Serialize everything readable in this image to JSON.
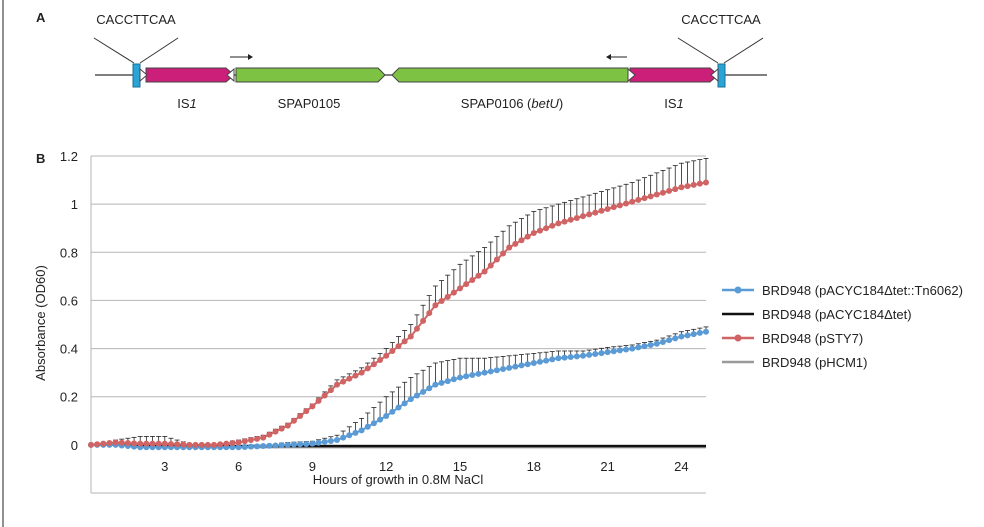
{
  "panel_a": {
    "label": "A",
    "left_site": "CACCTTCAA",
    "right_site": "CACCTTCAA",
    "elements": [
      {
        "name": "IS",
        "italic": "1"
      },
      {
        "name": "SPAP0105",
        "italic": ""
      },
      {
        "name": "SPAP0106 (",
        "italic": "betU",
        "suffix": ")"
      },
      {
        "name": "IS",
        "italic": "1"
      }
    ],
    "colors": {
      "is1": "#cc1f7a",
      "gene": "#7dc242",
      "dr": "#2aa4d6"
    }
  },
  "panel_b": {
    "label": "B"
  },
  "chart_data": {
    "type": "line",
    "title": "",
    "xlabel": "Hours of growth in 0.8M NaCl",
    "ylabel": "Absorbance (OD60)",
    "xlim": [
      0,
      25
    ],
    "ylim": [
      -0.2,
      1.2
    ],
    "xticks": [
      "3",
      "6",
      "9",
      "12",
      "15",
      "18",
      "21",
      "24"
    ],
    "yticks": [
      "0",
      "0.2",
      "0.4",
      "0.6",
      "0.8",
      "1",
      "1.2"
    ],
    "grid": true,
    "legend_position": "right",
    "x": [
      0,
      1,
      2,
      3,
      4,
      5,
      6,
      7,
      8,
      9,
      10,
      11,
      12,
      13,
      14,
      15,
      16,
      17,
      18,
      19,
      20,
      21,
      22,
      23,
      24,
      25
    ],
    "series": [
      {
        "name": "BRD948 (pACYC184Δtet::Tn6062)",
        "color": "#5b9bd5",
        "values": [
          0,
          0,
          -0.01,
          -0.01,
          -0.01,
          -0.01,
          -0.01,
          -0.005,
          0,
          0.005,
          0.02,
          0.06,
          0.12,
          0.19,
          0.25,
          0.28,
          0.3,
          0.32,
          0.34,
          0.36,
          0.37,
          0.385,
          0.4,
          0.42,
          0.45,
          0.47
        ],
        "error": [
          0,
          0.005,
          0.02,
          0.015,
          0.005,
          0.005,
          0.005,
          0.005,
          0.01,
          0.01,
          0.02,
          0.05,
          0.08,
          0.09,
          0.09,
          0.08,
          0.06,
          0.05,
          0.04,
          0.03,
          0.02,
          0.02,
          0.015,
          0.015,
          0.02,
          0.02
        ]
      },
      {
        "name": "BRD948 (pACYC184Δtet)",
        "color": "#111111",
        "values": [
          0,
          0,
          -0.005,
          -0.005,
          -0.005,
          -0.005,
          -0.005,
          -0.005,
          -0.005,
          -0.005,
          -0.005,
          -0.005,
          -0.005,
          -0.005,
          -0.005,
          -0.005,
          -0.005,
          -0.005,
          -0.005,
          -0.005,
          -0.005,
          -0.005,
          -0.005,
          -0.005,
          -0.005,
          -0.005
        ],
        "error": [
          0,
          0,
          0.005,
          0.005,
          0.005,
          0.005,
          0.005,
          0.005,
          0.005,
          0.005,
          0.005,
          0.005,
          0.005,
          0.005,
          0.005,
          0.005,
          0.005,
          0.005,
          0.005,
          0.005,
          0.005,
          0.005,
          0.005,
          0.005,
          0.005,
          0.005
        ]
      },
      {
        "name": "BRD948 (pSTY7)",
        "color": "#d06464",
        "values": [
          0,
          0.01,
          0.005,
          0.005,
          0,
          0,
          0.01,
          0.03,
          0.08,
          0.16,
          0.25,
          0.3,
          0.37,
          0.45,
          0.58,
          0.65,
          0.72,
          0.82,
          0.88,
          0.92,
          0.95,
          0.98,
          1.01,
          1.04,
          1.07,
          1.09
        ],
        "error": [
          0,
          0.01,
          0.03,
          0.03,
          0.005,
          0.005,
          0.01,
          0.01,
          0.01,
          0.01,
          0.02,
          0.02,
          0.03,
          0.05,
          0.08,
          0.1,
          0.1,
          0.09,
          0.09,
          0.08,
          0.08,
          0.08,
          0.08,
          0.09,
          0.1,
          0.1
        ]
      },
      {
        "name": "BRD948 (pHCM1)",
        "color": "#9a9a9a",
        "values": [
          0,
          0,
          -0.005,
          -0.01,
          -0.01,
          -0.01,
          -0.01,
          -0.01,
          -0.01,
          -0.01,
          -0.01,
          -0.01,
          -0.01,
          -0.01,
          -0.01,
          -0.01,
          -0.01,
          -0.01,
          -0.01,
          -0.01,
          -0.01,
          -0.01,
          -0.01,
          -0.01,
          -0.01,
          -0.01
        ],
        "error": [
          0,
          0,
          0.005,
          0.005,
          0.005,
          0.005,
          0.005,
          0.005,
          0.005,
          0.005,
          0.005,
          0.005,
          0.005,
          0.005,
          0.005,
          0.005,
          0.005,
          0.005,
          0.005,
          0.005,
          0.005,
          0.005,
          0.005,
          0.005,
          0.005,
          0.005
        ]
      }
    ]
  }
}
